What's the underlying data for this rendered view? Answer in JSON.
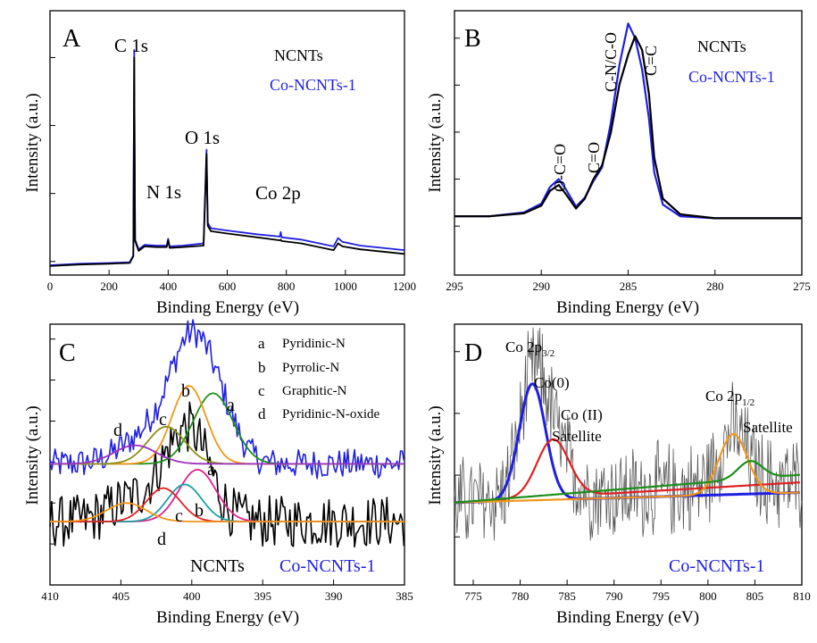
{
  "panels": {
    "A": {
      "letter": "A",
      "xlabel": "Binding Energy (eV)",
      "ylabel": "Intensity (a.u.)",
      "legend": [
        {
          "label": "NCNTs",
          "color": "#000000"
        },
        {
          "label": "Co-NCNTs-1",
          "color": "#1f1fe0"
        }
      ],
      "peak_labels": [
        "C 1s",
        "N 1s",
        "O 1s",
        "Co 2p"
      ]
    },
    "B": {
      "letter": "B",
      "xlabel": "Binding Energy (eV)",
      "ylabel": "Intensity (a.u.)",
      "legend": [
        {
          "label": "NCNTs",
          "color": "#000000"
        },
        {
          "label": "Co-NCNTs-1",
          "color": "#1f1fe0"
        }
      ],
      "peak_labels": [
        "O-C=O",
        "C=O",
        "C-N/C-O",
        "C=C"
      ]
    },
    "C": {
      "letter": "C",
      "xlabel": "Binding Energy (eV)",
      "ylabel": "Intensity (a.u.)",
      "key": [
        {
          "letter": "a",
          "label": "Pyridinic-N"
        },
        {
          "letter": "b",
          "label": "Pyrrolic-N"
        },
        {
          "letter": "c",
          "label": "Graphitic-N"
        },
        {
          "letter": "d",
          "label": "Pyridinic-N-oxide"
        }
      ],
      "peak_letters": [
        "a",
        "b",
        "c",
        "d"
      ],
      "sample_labels": [
        "NCNTs",
        "Co-NCNTs-1"
      ]
    },
    "D": {
      "letter": "D",
      "xlabel": "Binding Energy (eV)",
      "ylabel": "Intensity (a.u.)",
      "labels": {
        "co2p32_main": "Co 2p",
        "co2p32_sub": "3/2",
        "co0": "Co(0)",
        "co2": "Co (II)",
        "sat1": "Satellite",
        "co2p12_main": "Co 2p",
        "co2p12_sub": "1/2",
        "sat2": "Satellite",
        "sample": "Co-NCNTs-1"
      }
    }
  },
  "chart_data": [
    {
      "panel": "A",
      "type": "line",
      "xlim": [
        0,
        1200
      ],
      "xticks": [
        0,
        200,
        400,
        600,
        800,
        1000,
        1200
      ],
      "series": [
        {
          "name": "NCNTs",
          "color": "#000000",
          "x": [
            0,
            100,
            200,
            270,
            282,
            285,
            288,
            300,
            320,
            360,
            395,
            400,
            405,
            450,
            520,
            530,
            534,
            545,
            600,
            700,
            778,
            781,
            784,
            850,
            960,
            975,
            990,
            1050,
            1200
          ],
          "y": [
            1.2,
            1.4,
            1.5,
            1.6,
            2.5,
            28.8,
            4.5,
            3.2,
            3.8,
            3.7,
            3.7,
            4.6,
            3.6,
            3.7,
            3.9,
            16.0,
            6.5,
            5.8,
            5.5,
            5.0,
            4.6,
            4.7,
            4.5,
            4.2,
            3.3,
            4.2,
            3.8,
            3.4,
            2.8
          ]
        },
        {
          "name": "Co-NCNTs-1",
          "color": "#1f1fe0",
          "x": [
            0,
            100,
            200,
            270,
            282,
            285,
            288,
            300,
            320,
            360,
            395,
            400,
            405,
            450,
            520,
            530,
            534,
            545,
            600,
            700,
            778,
            781,
            784,
            850,
            960,
            975,
            990,
            1050,
            1200
          ],
          "y": [
            1.3,
            1.5,
            1.6,
            1.7,
            2.6,
            29.8,
            4.7,
            3.4,
            4.0,
            3.9,
            3.9,
            4.8,
            3.8,
            3.9,
            4.2,
            16.6,
            6.9,
            6.2,
            5.9,
            5.4,
            5.1,
            5.7,
            5.0,
            4.7,
            3.8,
            4.9,
            4.4,
            3.9,
            3.3
          ]
        }
      ]
    },
    {
      "panel": "B",
      "type": "line",
      "xlim": [
        295,
        275
      ],
      "xticks": [
        295,
        290,
        285,
        280,
        275
      ],
      "series": [
        {
          "name": "NCNTs",
          "color": "#000000",
          "x": [
            295,
            293,
            291,
            290,
            289.5,
            289.0,
            288.6,
            288.0,
            287.5,
            287.0,
            286.5,
            286.0,
            285.5,
            285.0,
            284.6,
            284.2,
            283.8,
            283.5,
            283,
            282,
            280,
            275
          ],
          "y": [
            1.0,
            1.0,
            1.3,
            2.1,
            3.6,
            4.2,
            3.3,
            1.8,
            2.8,
            4.8,
            6.2,
            9.5,
            14.5,
            17.5,
            19.4,
            18.0,
            13.5,
            7.0,
            2.8,
            1.2,
            0.8,
            0.8
          ]
        },
        {
          "name": "Co-NCNTs-1",
          "color": "#1f1fe0",
          "x": [
            295,
            293,
            291,
            290,
            289.5,
            289.0,
            288.6,
            288.0,
            287.5,
            287.0,
            286.5,
            286.0,
            285.5,
            285.0,
            284.6,
            284.2,
            283.8,
            283.5,
            283,
            282,
            280,
            275
          ],
          "y": [
            1.0,
            1.0,
            1.4,
            2.3,
            4.0,
            4.8,
            3.8,
            2.0,
            2.9,
            4.6,
            6.0,
            10.5,
            16.5,
            20.7,
            19.2,
            16.0,
            11.0,
            5.5,
            2.2,
            1.0,
            0.8,
            0.8
          ]
        }
      ]
    },
    {
      "panel": "C",
      "type": "line",
      "xlim": [
        410,
        385
      ],
      "xticks": [
        410,
        405,
        400,
        395,
        390,
        385
      ],
      "series": [
        {
          "name": "Co-NCNTs-1",
          "color": "#1f1fe0",
          "baseline": 5.5,
          "peaks": [
            {
              "c": 398.5,
              "h": 3.8,
              "w": 1.4
            },
            {
              "c": 400.2,
              "h": 4.2,
              "w": 1.2
            },
            {
              "c": 401.8,
              "h": 2.0,
              "w": 1.3
            },
            {
              "c": 404.0,
              "h": 1.0,
              "w": 1.5
            }
          ],
          "noise": 0.8
        },
        {
          "name": "NCNTs",
          "color": "#000000",
          "baseline": 2.4,
          "peaks": [
            {
              "c": 399.6,
              "h": 2.8,
              "w": 1.3
            },
            {
              "c": 400.5,
              "h": 2.0,
              "w": 1.2
            },
            {
              "c": 402.0,
              "h": 1.8,
              "w": 1.2
            },
            {
              "c": 404.6,
              "h": 1.0,
              "w": 1.4
            }
          ],
          "noise": 1.4
        }
      ],
      "fits": [
        {
          "name": "a (Co-NCNTs-1)",
          "color": "#1a8f1a",
          "baseline": 5.5,
          "c": 398.5,
          "h": 3.8,
          "w": 1.4
        },
        {
          "name": "b (Co-NCNTs-1)",
          "color": "#f29619",
          "baseline": 5.5,
          "c": 400.2,
          "h": 4.2,
          "w": 1.2
        },
        {
          "name": "c (Co-NCNTs-1)",
          "color": "#8f8f1a",
          "baseline": 5.5,
          "c": 401.8,
          "h": 2.0,
          "w": 1.3
        },
        {
          "name": "d (Co-NCNTs-1)",
          "color": "#9b30c0",
          "baseline": 5.5,
          "c": 404.0,
          "h": 1.0,
          "w": 1.5
        },
        {
          "name": "a (NCNTs)",
          "color": "#e0208f",
          "baseline": 2.4,
          "c": 399.6,
          "h": 2.8,
          "w": 1.3
        },
        {
          "name": "b (NCNTs)",
          "color": "#1fa0a0",
          "baseline": 2.4,
          "c": 400.5,
          "h": 2.0,
          "w": 1.2
        },
        {
          "name": "c (NCNTs)",
          "color": "#e02020",
          "baseline": 2.4,
          "c": 402.0,
          "h": 1.8,
          "w": 1.2
        },
        {
          "name": "d (NCNTs)",
          "color": "#f29619",
          "baseline": 2.4,
          "c": 404.6,
          "h": 1.0,
          "w": 1.4
        }
      ]
    },
    {
      "panel": "D",
      "type": "line",
      "xlim": [
        773,
        810
      ],
      "xticks": [
        775,
        780,
        785,
        790,
        795,
        800,
        805,
        810
      ],
      "series": [
        {
          "name": "Co-NCNTs-1",
          "color": "#555555",
          "baseline": 3.0,
          "noise": 2.0
        }
      ],
      "fits": [
        {
          "name": "Co(0)",
          "color": "#1f1fe0",
          "baseline": 3.0,
          "c": 781.3,
          "h": 8.5,
          "w": 1.4,
          "slope": 0.0
        },
        {
          "name": "Co (II) Satellite",
          "color": "#e02020",
          "baseline": 3.0,
          "c": 783.5,
          "h": 4.2,
          "w": 1.7,
          "slope": 0.02
        },
        {
          "name": "Co 2p1/2",
          "color": "#f29619",
          "baseline": 3.0,
          "c": 802.7,
          "h": 4.4,
          "w": 1.5,
          "slope": 0.0
        },
        {
          "name": "Satellite",
          "color": "#1a8f1a",
          "baseline": 3.0,
          "c": 804.5,
          "h": 1.3,
          "w": 1.3,
          "slope": 0.035
        }
      ]
    }
  ]
}
